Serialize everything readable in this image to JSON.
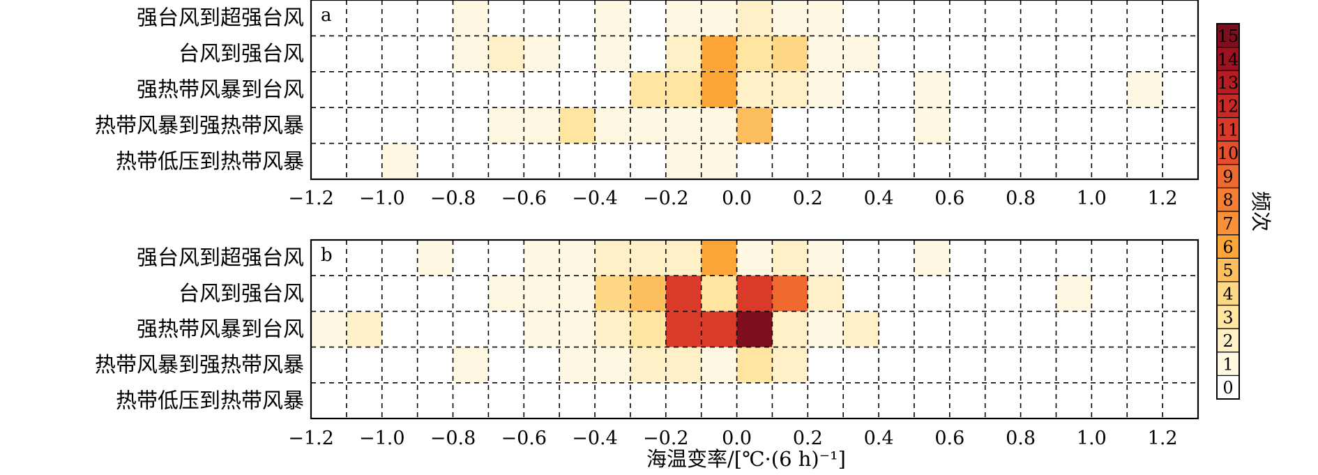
{
  "chart_data": [
    {
      "type": "heatmap",
      "panel_label": "a",
      "categories": [
        "强台风到超强台风",
        "台风到强台风",
        "强热带风暴到台风",
        "热带风暴到强热带风暴",
        "热带低压到热带风暴"
      ],
      "x_bins": [
        -1.2,
        -1.1,
        -1.0,
        -0.9,
        -0.8,
        -0.7,
        -0.6,
        -0.5,
        -0.4,
        -0.3,
        -0.2,
        -0.1,
        0.0,
        0.1,
        0.2,
        0.3,
        0.4,
        0.5,
        0.6,
        0.7,
        0.8,
        0.9,
        1.0,
        1.1,
        1.2,
        1.3
      ],
      "values": [
        [
          0,
          0,
          0,
          0,
          1,
          0,
          0,
          0,
          1,
          0,
          1,
          1,
          2,
          1,
          1,
          0,
          0,
          0,
          0,
          0,
          0,
          0,
          0,
          0,
          0
        ],
        [
          0,
          0,
          0,
          0,
          1,
          2,
          1,
          0,
          1,
          0,
          2,
          6,
          3,
          4,
          1,
          1,
          0,
          0,
          0,
          0,
          0,
          0,
          0,
          0,
          0
        ],
        [
          0,
          0,
          0,
          0,
          0,
          0,
          0,
          0,
          0,
          3,
          3,
          6,
          2,
          2,
          1,
          0,
          0,
          1,
          0,
          0,
          0,
          0,
          0,
          1,
          0
        ],
        [
          0,
          0,
          0,
          0,
          0,
          1,
          1,
          3,
          1,
          1,
          1,
          1,
          5,
          0,
          0,
          0,
          0,
          1,
          0,
          0,
          0,
          0,
          0,
          0,
          0
        ],
        [
          0,
          0,
          1,
          0,
          0,
          0,
          0,
          0,
          0,
          0,
          1,
          1,
          0,
          0,
          0,
          0,
          0,
          0,
          0,
          0,
          0,
          0,
          0,
          0,
          0
        ]
      ],
      "xlim": [
        -1.2,
        1.3
      ],
      "xticks": [
        "−1.2",
        "−1.0",
        "−0.8",
        "−0.6",
        "−0.4",
        "−0.2",
        "0.0",
        "0.2",
        "0.4",
        "0.6",
        "0.8",
        "1.0",
        "1.2"
      ],
      "grid": true
    },
    {
      "type": "heatmap",
      "panel_label": "b",
      "categories": [
        "强台风到超强台风",
        "台风到强台风",
        "强热带风暴到台风",
        "热带风暴到强热带风暴",
        "热带低压到热带风暴"
      ],
      "x_bins": [
        -1.2,
        -1.1,
        -1.0,
        -0.9,
        -0.8,
        -0.7,
        -0.6,
        -0.5,
        -0.4,
        -0.3,
        -0.2,
        -0.1,
        0.0,
        0.1,
        0.2,
        0.3,
        0.4,
        0.5,
        0.6,
        0.7,
        0.8,
        0.9,
        1.0,
        1.1,
        1.2,
        1.3
      ],
      "values": [
        [
          0,
          0,
          0,
          1,
          0,
          0,
          1,
          1,
          2,
          2,
          2,
          6,
          1,
          2,
          1,
          0,
          0,
          1,
          0,
          0,
          0,
          0,
          0,
          0,
          0
        ],
        [
          0,
          0,
          0,
          0,
          0,
          1,
          1,
          1,
          4,
          5,
          11,
          3,
          11,
          9,
          2,
          0,
          0,
          0,
          0,
          0,
          0,
          1,
          0,
          0,
          0
        ],
        [
          1,
          2,
          0,
          0,
          0,
          0,
          1,
          1,
          2,
          3,
          11,
          11,
          15,
          2,
          1,
          2,
          0,
          0,
          0,
          0,
          0,
          0,
          0,
          0,
          0
        ],
        [
          0,
          0,
          0,
          0,
          1,
          0,
          0,
          1,
          1,
          2,
          2,
          1,
          3,
          2,
          0,
          0,
          0,
          0,
          0,
          0,
          0,
          0,
          0,
          0,
          0
        ],
        [
          0,
          0,
          0,
          0,
          0,
          0,
          0,
          0,
          0,
          0,
          0,
          0,
          0,
          0,
          0,
          0,
          0,
          0,
          0,
          0,
          0,
          0,
          0,
          0,
          0
        ]
      ],
      "xlim": [
        -1.2,
        1.3
      ],
      "xticks": [
        "−1.2",
        "−1.0",
        "−0.8",
        "−0.6",
        "−0.4",
        "−0.2",
        "0.0",
        "0.2",
        "0.4",
        "0.6",
        "0.8",
        "1.0",
        "1.2"
      ],
      "xlabel": "海温变率/[℃·(6 h)⁻¹]",
      "grid": true
    }
  ],
  "colorbar": {
    "label": "频次",
    "min": 0,
    "max": 15,
    "ticks": [
      "0",
      "1",
      "2",
      "3",
      "4",
      "5",
      "6",
      "7",
      "8",
      "9",
      "10",
      "11",
      "12",
      "13",
      "14",
      "15"
    ],
    "colors": [
      "#ffffff",
      "#fff8e3",
      "#fff0c8",
      "#ffe59f",
      "#fed885",
      "#fdbf5d",
      "#fca63a",
      "#f99137",
      "#f67e33",
      "#f06a2f",
      "#e64e2c",
      "#d93a29",
      "#c92a27",
      "#b51c24",
      "#9e1120",
      "#7f0f1e"
    ]
  }
}
